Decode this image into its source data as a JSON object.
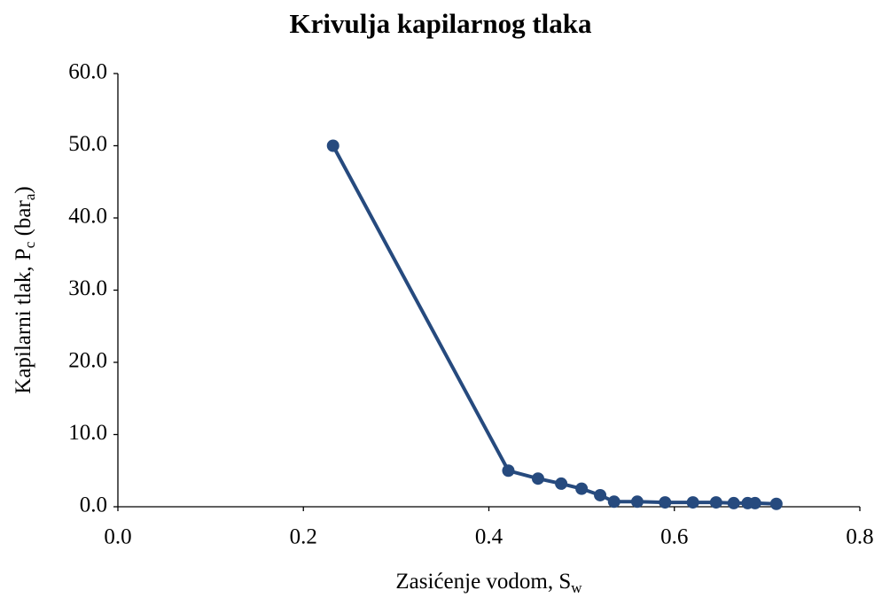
{
  "chart_data": {
    "type": "line",
    "title": "Krivulja kapilarnog tlaka",
    "x_label": [
      "Zasićenje vodom, S",
      "w"
    ],
    "y_label": [
      "Kapilarni tlak, P",
      "c",
      " (bar",
      "a",
      ")"
    ],
    "series": [
      {
        "color": "#264a7e",
        "x": [
          0.232,
          0.421,
          0.453,
          0.478,
          0.5,
          0.52,
          0.535,
          0.56,
          0.59,
          0.62,
          0.645,
          0.664,
          0.679,
          0.687,
          0.71
        ],
        "values": [
          50.0,
          5.0,
          3.9,
          3.2,
          2.5,
          1.6,
          0.7,
          0.7,
          0.6,
          0.6,
          0.6,
          0.5,
          0.5,
          0.5,
          0.4
        ]
      }
    ],
    "xlim": [
      0,
      0.8
    ],
    "xticks": [
      {
        "value": 0,
        "label": "0.0"
      },
      0.2,
      0.4,
      0.6,
      0.8
    ],
    "ylim": [
      0,
      60
    ],
    "yticks": [
      {
        "value": 0,
        "label": "0.0"
      },
      {
        "value": 10,
        "label": "10.0"
      },
      {
        "value": 20,
        "label": "20.0"
      },
      {
        "value": 30,
        "label": "30.0"
      },
      {
        "value": 40,
        "label": "40.0"
      },
      {
        "value": 50,
        "label": "50.0"
      },
      {
        "value": 60,
        "label": "60.0"
      }
    ],
    "grid": false
  }
}
